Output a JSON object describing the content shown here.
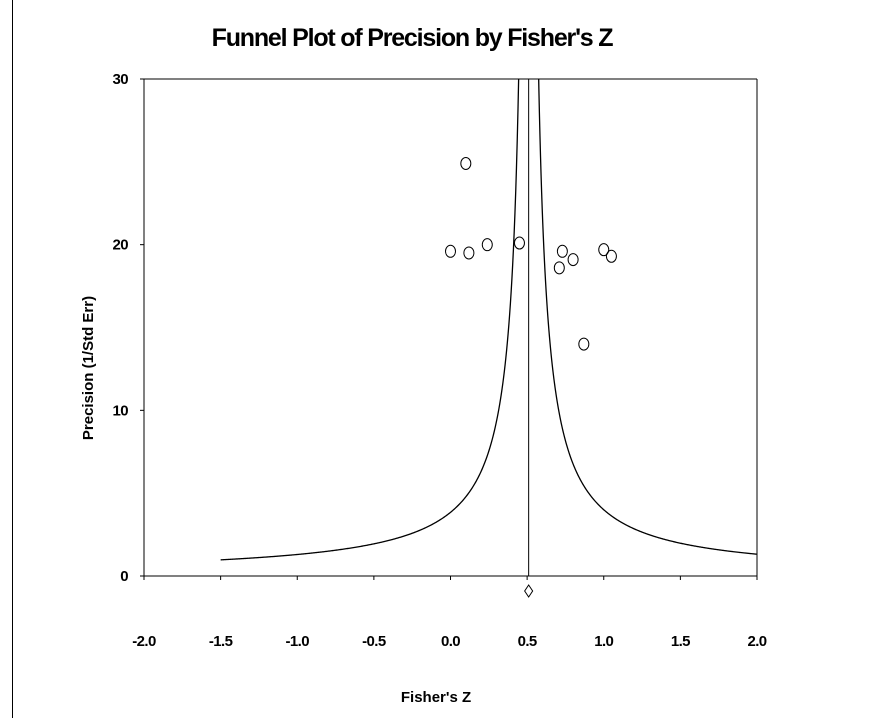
{
  "chart_data": {
    "type": "scatter",
    "title": "Funnel Plot of Precision by Fisher's Z",
    "xlabel": "Fisher's Z",
    "ylabel": "Precision (1/Std Err)",
    "xlim": [
      -2.0,
      2.0
    ],
    "ylim": [
      0,
      30
    ],
    "x_ticks": [
      "-2.0",
      "-1.5",
      "-1.0",
      "-0.5",
      "0.0",
      "0.5",
      "1.0",
      "1.5",
      "2.0"
    ],
    "y_ticks": [
      "0",
      "10",
      "20",
      "30"
    ],
    "grid": false,
    "center_line": 0.51,
    "summary_estimate": 0.51,
    "funnel": {
      "center": 0.51,
      "x_from": -1.5,
      "x_to": 2.0
    },
    "points": [
      {
        "x": 0.1,
        "y": 24.9
      },
      {
        "x": 0.0,
        "y": 19.6
      },
      {
        "x": 0.12,
        "y": 19.5
      },
      {
        "x": 0.24,
        "y": 20.0
      },
      {
        "x": 0.45,
        "y": 20.1
      },
      {
        "x": 0.73,
        "y": 19.6
      },
      {
        "x": 0.71,
        "y": 18.6
      },
      {
        "x": 0.8,
        "y": 19.1
      },
      {
        "x": 1.0,
        "y": 19.7
      },
      {
        "x": 1.05,
        "y": 19.3
      },
      {
        "x": 0.87,
        "y": 14.0
      }
    ]
  }
}
